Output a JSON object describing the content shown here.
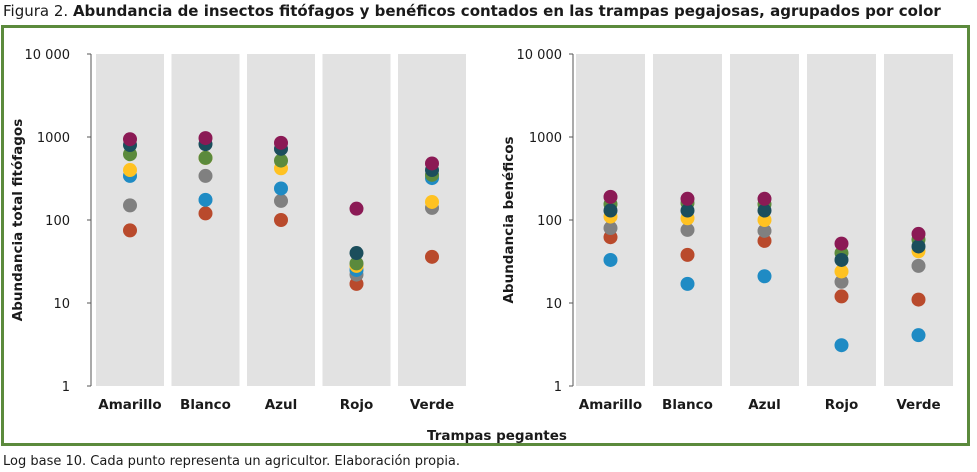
{
  "figure": {
    "label": "Figura 2.",
    "title": "Abundancia de insectos fitófagos y benéficos contados en las trampas pegajosas, agrupados por color",
    "xlabel": "Trampas pegantes",
    "note": "Log base 10. Cada punto representa un agricultor. Elaboración propia."
  },
  "chart_data": [
    {
      "type": "scatter",
      "ylabel": "Abundancia total fitófagos",
      "yscale": "log10",
      "ylim": [
        1,
        10000
      ],
      "yticks": [
        1,
        10,
        100,
        1000,
        10000
      ],
      "ytick_labels": [
        "1",
        "10",
        "100",
        "1000",
        "10 000"
      ],
      "categories": [
        "Amarillo",
        "Blanco",
        "Azul",
        "Rojo",
        "Verde"
      ],
      "point_colors": [
        "#b94a2c",
        "#808080",
        "#1f8bc4",
        "#ffc222",
        "#5b8a3c",
        "#1b4e5c",
        "#8b1a55"
      ],
      "points": [
        [
          75,
          150,
          340,
          400,
          620,
          800,
          940
        ],
        [
          120,
          340,
          175,
          560,
          560,
          820,
          970
        ],
        [
          100,
          170,
          240,
          420,
          520,
          720,
          850
        ],
        [
          17,
          22,
          25,
          28,
          30,
          40,
          137
        ],
        [
          36,
          140,
          320,
          165,
          350,
          400,
          480
        ]
      ]
    },
    {
      "type": "scatter",
      "ylabel": "Abundancia benéficos",
      "yscale": "log10",
      "ylim": [
        1,
        10000
      ],
      "yticks": [
        1,
        10,
        100,
        1000,
        10000
      ],
      "ytick_labels": [
        "1",
        "10",
        "100",
        "1000",
        "10 000"
      ],
      "categories": [
        "Amarillo",
        "Blanco",
        "Azul",
        "Rojo",
        "Verde"
      ],
      "point_colors": [
        "#b94a2c",
        "#808080",
        "#1f8bc4",
        "#ffc222",
        "#5b8a3c",
        "#1b4e5c",
        "#8b1a55"
      ],
      "points": [
        [
          62,
          80,
          33,
          110,
          155,
          130,
          190
        ],
        [
          38,
          76,
          17,
          105,
          160,
          130,
          180
        ],
        [
          56,
          74,
          21,
          100,
          155,
          130,
          180
        ],
        [
          12,
          18,
          3.1,
          24,
          40,
          33,
          52
        ],
        [
          11,
          28,
          4.1,
          42,
          58,
          48,
          68
        ]
      ]
    }
  ]
}
